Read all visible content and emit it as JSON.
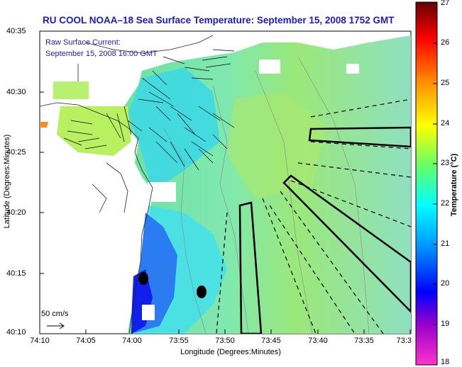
{
  "title": "RU COOL  NOAA–18  Sea Surface Temperature:  September 15, 2008 1752 GMT",
  "y_axis": {
    "title": "Latitude (Degrees:Minutes)",
    "ticks": [
      "40:35",
      "40:30",
      "40:25",
      "40:20",
      "40:15",
      "40:10"
    ]
  },
  "x_axis": {
    "title": "Longitude (Degrees:Minutes)",
    "ticks": [
      "74:10",
      "74:05",
      "74:00",
      "73:55",
      "73:50",
      "73:45",
      "73:40",
      "73:35",
      "73:3"
    ]
  },
  "colorbar": {
    "title": "Temperature (°C)",
    "ticks": [
      "27",
      "26",
      "25",
      "24",
      "23",
      "22",
      "21",
      "20",
      "19",
      "18"
    ],
    "range": [
      18,
      27
    ],
    "colors": [
      "#ff33cc",
      "#9900cc",
      "#0000ff",
      "#0099ff",
      "#00ffff",
      "#66ff66",
      "#ffff00",
      "#ff9900",
      "#ff0000",
      "#660000"
    ]
  },
  "legend": {
    "current_line1": "Raw Surface Current:",
    "current_line2": "September 15, 2008 16:00 GMT",
    "scale_label": "50 cm/s"
  }
}
